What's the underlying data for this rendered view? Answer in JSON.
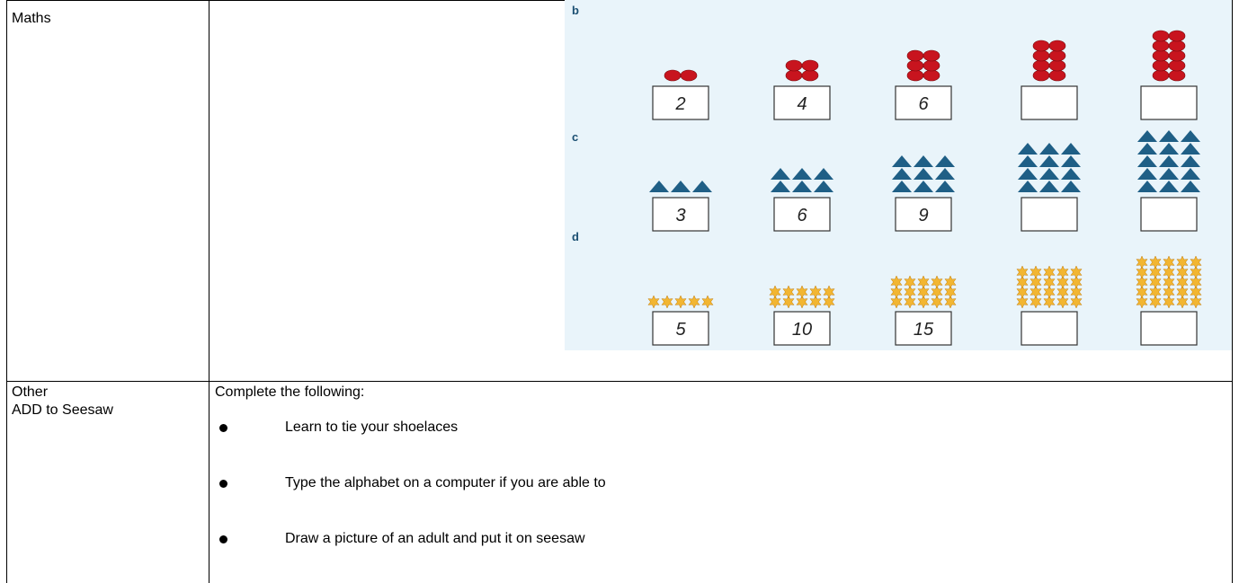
{
  "table": {
    "rows": [
      {
        "label": "Maths"
      },
      {
        "label": [
          "Other",
          "ADD to Seesaw"
        ],
        "intro": "Complete the following:",
        "items": [
          "Learn to tie your shoelaces",
          "Type the alphabet on a computer if you are able to",
          "Draw a picture of an adult and put it on seesaw"
        ]
      }
    ]
  },
  "worksheet": {
    "rows": [
      {
        "label": "b",
        "answers": [
          "2",
          "4",
          "6"
        ]
      },
      {
        "label": "c",
        "answers": [
          "3",
          "6",
          "9"
        ]
      },
      {
        "label": "d",
        "answers": [
          "5",
          "10",
          "15"
        ]
      }
    ]
  }
}
